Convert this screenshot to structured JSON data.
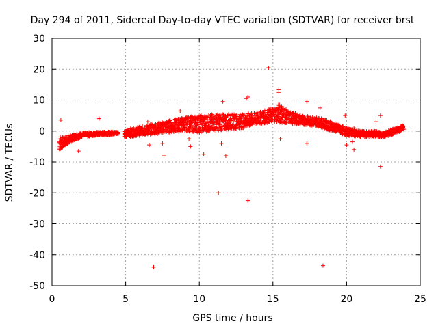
{
  "chart_data": {
    "type": "scatter",
    "title": "Day 294 of 2011, Sidereal Day-to-day VTEC variation (SDTVAR) for receiver brst",
    "xlabel": "GPS time / hours",
    "ylabel": "SDTVAR / TECUs",
    "xlim": [
      0,
      25
    ],
    "ylim": [
      -50,
      30
    ],
    "xticks": [
      0,
      5,
      10,
      15,
      20,
      25
    ],
    "yticks": [
      30,
      20,
      10,
      0,
      -10,
      -20,
      -30,
      -40,
      -50
    ],
    "grid": true,
    "marker": "+",
    "color": "#ff0000",
    "dense_band": {
      "description": "continuous cloud of samples (lower / upper envelope in TECU)",
      "x": [
        0.5,
        0.7,
        1.0,
        1.5,
        2.0,
        3.0,
        4.0,
        4.5,
        5.0,
        6.0,
        7.0,
        8.0,
        9.0,
        10.0,
        11.0,
        12.0,
        13.0,
        14.0,
        15.0,
        15.5,
        16.0,
        17.0,
        18.0,
        19.0,
        20.0,
        21.0,
        22.0,
        22.5,
        23.0,
        23.5,
        23.9
      ],
      "lower": [
        -6.5,
        -5.5,
        -4.5,
        -3.0,
        -2.0,
        -1.5,
        -1.2,
        -1.0,
        -2.0,
        -1.5,
        -1.0,
        -0.5,
        0.0,
        -0.5,
        0.0,
        0.5,
        1.0,
        2.0,
        3.0,
        2.5,
        2.5,
        2.0,
        1.5,
        0.0,
        -1.5,
        -2.0,
        -2.0,
        -2.0,
        -1.5,
        -0.5,
        0.5
      ],
      "upper": [
        -1.0,
        -2.0,
        -1.5,
        -1.0,
        -0.5,
        -0.3,
        -0.2,
        -0.2,
        0.5,
        1.5,
        2.5,
        3.5,
        4.5,
        5.0,
        5.5,
        5.5,
        5.5,
        6.0,
        7.5,
        9.0,
        6.5,
        5.0,
        4.5,
        3.0,
        1.0,
        0.0,
        0.0,
        -0.5,
        0.5,
        1.5,
        2.0
      ]
    },
    "gaps": [
      [
        4.5,
        4.9
      ]
    ],
    "outliers": [
      {
        "x": 0.6,
        "y": 3.5
      },
      {
        "x": 1.8,
        "y": -6.5
      },
      {
        "x": 3.2,
        "y": 4.0
      },
      {
        "x": 6.5,
        "y": 3.0
      },
      {
        "x": 6.6,
        "y": -4.5
      },
      {
        "x": 6.9,
        "y": -44
      },
      {
        "x": 7.5,
        "y": -4.0
      },
      {
        "x": 7.6,
        "y": -8.0
      },
      {
        "x": 8.7,
        "y": 6.5
      },
      {
        "x": 9.3,
        "y": -2.5
      },
      {
        "x": 9.4,
        "y": -5.0
      },
      {
        "x": 10.3,
        "y": -7.5
      },
      {
        "x": 11.3,
        "y": -20.0
      },
      {
        "x": 11.5,
        "y": -4.0
      },
      {
        "x": 11.8,
        "y": -8.0
      },
      {
        "x": 11.6,
        "y": 9.5
      },
      {
        "x": 13.2,
        "y": 10.5
      },
      {
        "x": 13.3,
        "y": 11.0
      },
      {
        "x": 13.3,
        "y": -22.5
      },
      {
        "x": 14.7,
        "y": 20.5
      },
      {
        "x": 15.4,
        "y": 13.5
      },
      {
        "x": 15.4,
        "y": 12.5
      },
      {
        "x": 15.5,
        "y": -2.5
      },
      {
        "x": 17.3,
        "y": 9.5
      },
      {
        "x": 17.3,
        "y": -4.0
      },
      {
        "x": 18.2,
        "y": 7.5
      },
      {
        "x": 18.4,
        "y": -43.5
      },
      {
        "x": 19.9,
        "y": 5.0
      },
      {
        "x": 20.0,
        "y": -4.5
      },
      {
        "x": 20.4,
        "y": -3.5
      },
      {
        "x": 20.5,
        "y": 1.0
      },
      {
        "x": 20.5,
        "y": -6.0
      },
      {
        "x": 22.0,
        "y": 3.0
      },
      {
        "x": 22.3,
        "y": 5.0
      },
      {
        "x": 22.3,
        "y": -11.5
      }
    ]
  }
}
